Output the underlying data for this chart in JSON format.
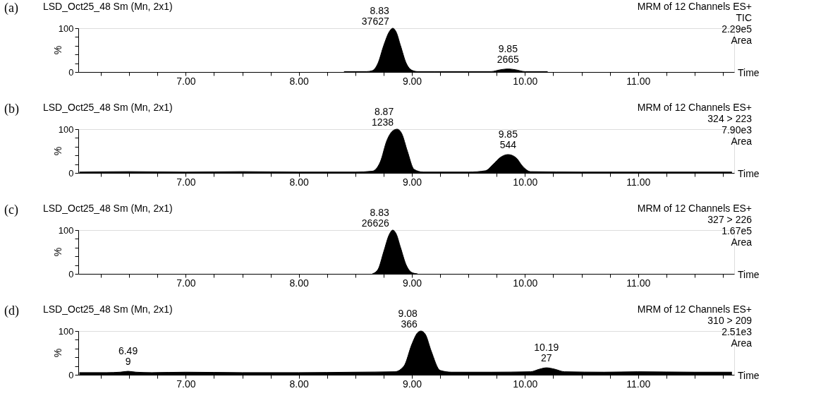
{
  "chart_data": [
    {
      "type": "area",
      "title": "LSD_Oct25_48 Sm (Mn, 2x1)",
      "subtitle": "MRM of 12 Channels ES+",
      "xlabel": "Time",
      "ylabel": "%",
      "color": "#000000",
      "annotations": [
        "(a)",
        "TIC",
        "2.29e5",
        "Area",
        {
          "text": "8.83\n37627",
          "x": 8.83,
          "y": 100
        },
        {
          "text": "9.85\n2665",
          "x": 9.85,
          "y": 7
        }
      ],
      "x": [
        8.4,
        8.6,
        8.65,
        8.7,
        8.75,
        8.8,
        8.83,
        8.86,
        8.9,
        8.95,
        9.0,
        9.05,
        9.2,
        9.5,
        9.7,
        9.78,
        9.85,
        9.92,
        10.0,
        10.2
      ],
      "values": [
        1,
        1,
        3,
        20,
        60,
        92,
        100,
        92,
        60,
        20,
        4,
        1,
        1,
        1,
        1,
        5,
        7,
        5,
        1,
        1
      ],
      "xlim": [
        6.05,
        11.85
      ],
      "ylim": [
        0,
        100
      ],
      "grid": false,
      "xticks": [
        {
          "value": 6.25,
          "label": null
        },
        {
          "value": 6.5,
          "label": null
        },
        {
          "value": 6.75,
          "label": null
        },
        {
          "value": 7,
          "label": "7.00"
        },
        {
          "value": 7.25,
          "label": null
        },
        {
          "value": 7.5,
          "label": null
        },
        {
          "value": 7.75,
          "label": null
        },
        {
          "value": 8,
          "label": "8.00"
        },
        {
          "value": 8.25,
          "label": null
        },
        {
          "value": 8.5,
          "label": null
        },
        {
          "value": 8.75,
          "label": null
        },
        {
          "value": 9,
          "label": "9.00"
        },
        {
          "value": 9.25,
          "label": null
        },
        {
          "value": 9.5,
          "label": null
        },
        {
          "value": 9.75,
          "label": null
        },
        {
          "value": 10,
          "label": "10.00"
        },
        {
          "value": 10.25,
          "label": null
        },
        {
          "value": 10.5,
          "label": null
        },
        {
          "value": 10.75,
          "label": null
        },
        {
          "value": 11,
          "label": "11.00"
        },
        {
          "value": 11.25,
          "label": null
        },
        {
          "value": 11.5,
          "label": null
        },
        {
          "value": 11.75,
          "label": null
        }
      ],
      "yticks": [
        0,
        {
          "value": 20,
          "label": null
        },
        {
          "value": 40,
          "label": null
        },
        {
          "value": 60,
          "label": null
        },
        {
          "value": 80,
          "label": null
        },
        100
      ]
    },
    {
      "type": "area",
      "title": "LSD_Oct25_48 Sm (Mn, 2x1)",
      "subtitle": "MRM of 12 Channels ES+",
      "xlabel": "Time",
      "ylabel": "%",
      "color": "#000000",
      "annotations": [
        "(b)",
        "324 > 223",
        "7.90e3",
        "Area",
        {
          "text": "8.87\n1238",
          "x": 8.87,
          "y": 100
        },
        {
          "text": "9.85\n544",
          "x": 9.85,
          "y": 42
        }
      ],
      "x": [
        6.06,
        6.5,
        7.0,
        7.5,
        8.0,
        8.5,
        8.65,
        8.72,
        8.78,
        8.83,
        8.87,
        8.91,
        8.96,
        9.02,
        9.1,
        9.5,
        9.65,
        9.72,
        9.78,
        9.85,
        9.92,
        9.98,
        10.05,
        10.5,
        11.0,
        11.5,
        11.83
      ],
      "values": [
        2,
        3,
        2,
        3,
        2,
        2,
        4,
        25,
        75,
        96,
        100,
        90,
        50,
        8,
        2,
        2,
        5,
        20,
        35,
        42,
        35,
        15,
        3,
        2,
        2,
        2,
        2
      ],
      "xlim": [
        6.05,
        11.85
      ],
      "ylim": [
        0,
        100
      ],
      "grid": false,
      "xticks": [
        {
          "value": 6.25,
          "label": null
        },
        {
          "value": 6.5,
          "label": null
        },
        {
          "value": 6.75,
          "label": null
        },
        {
          "value": 7,
          "label": "7.00"
        },
        {
          "value": 7.25,
          "label": null
        },
        {
          "value": 7.5,
          "label": null
        },
        {
          "value": 7.75,
          "label": null
        },
        {
          "value": 8,
          "label": "8.00"
        },
        {
          "value": 8.25,
          "label": null
        },
        {
          "value": 8.5,
          "label": null
        },
        {
          "value": 8.75,
          "label": null
        },
        {
          "value": 9,
          "label": "9.00"
        },
        {
          "value": 9.25,
          "label": null
        },
        {
          "value": 9.5,
          "label": null
        },
        {
          "value": 9.75,
          "label": null
        },
        {
          "value": 10,
          "label": "10.00"
        },
        {
          "value": 10.25,
          "label": null
        },
        {
          "value": 10.5,
          "label": null
        },
        {
          "value": 10.75,
          "label": null
        },
        {
          "value": 11,
          "label": "11.00"
        },
        {
          "value": 11.25,
          "label": null
        },
        {
          "value": 11.5,
          "label": null
        },
        {
          "value": 11.75,
          "label": null
        }
      ],
      "yticks": [
        0,
        {
          "value": 20,
          "label": null
        },
        {
          "value": 40,
          "label": null
        },
        {
          "value": 60,
          "label": null
        },
        {
          "value": 80,
          "label": null
        },
        100
      ]
    },
    {
      "type": "area",
      "title": "LSD_Oct25_48 Sm (Mn, 2x1)",
      "subtitle": "MRM of 12 Channels ES+",
      "xlabel": "Time",
      "ylabel": "%",
      "color": "#000000",
      "annotations": [
        "(c)",
        "327 > 226",
        "1.67e5",
        "Area",
        {
          "text": "8.83\n26626",
          "x": 8.83,
          "y": 100
        }
      ],
      "x": [
        8.65,
        8.7,
        8.75,
        8.8,
        8.83,
        8.86,
        8.9,
        8.95,
        9.0,
        9.05
      ],
      "values": [
        0,
        10,
        50,
        90,
        100,
        92,
        60,
        20,
        3,
        0
      ],
      "xlim": [
        6.05,
        11.85
      ],
      "ylim": [
        0,
        100
      ],
      "grid": false,
      "xticks": [
        {
          "value": 6.25,
          "label": null
        },
        {
          "value": 6.5,
          "label": null
        },
        {
          "value": 6.75,
          "label": null
        },
        {
          "value": 7,
          "label": "7.00"
        },
        {
          "value": 7.25,
          "label": null
        },
        {
          "value": 7.5,
          "label": null
        },
        {
          "value": 7.75,
          "label": null
        },
        {
          "value": 8,
          "label": "8.00"
        },
        {
          "value": 8.25,
          "label": null
        },
        {
          "value": 8.5,
          "label": null
        },
        {
          "value": 8.75,
          "label": null
        },
        {
          "value": 9,
          "label": "9.00"
        },
        {
          "value": 9.25,
          "label": null
        },
        {
          "value": 9.5,
          "label": null
        },
        {
          "value": 9.75,
          "label": null
        },
        {
          "value": 10,
          "label": "10.00"
        },
        {
          "value": 10.25,
          "label": null
        },
        {
          "value": 10.5,
          "label": null
        },
        {
          "value": 10.75,
          "label": null
        },
        {
          "value": 11,
          "label": "11.00"
        },
        {
          "value": 11.25,
          "label": null
        },
        {
          "value": 11.5,
          "label": null
        },
        {
          "value": 11.75,
          "label": null
        }
      ],
      "yticks": [
        0,
        {
          "value": 20,
          "label": null
        },
        {
          "value": 40,
          "label": null
        },
        {
          "value": 60,
          "label": null
        },
        {
          "value": 80,
          "label": null
        },
        100
      ]
    },
    {
      "type": "area",
      "title": "LSD_Oct25_48 Sm (Mn, 2x1)",
      "subtitle": "MRM of 12 Channels ES+",
      "xlabel": "Time",
      "ylabel": "%",
      "color": "#000000",
      "annotations": [
        "(d)",
        "310 > 209",
        "2.51e3",
        "Area",
        {
          "text": "6.49\n9",
          "x": 6.49,
          "y": 8
        },
        {
          "text": "9.08\n366",
          "x": 9.08,
          "y": 100
        },
        {
          "text": "10.19\n27",
          "x": 10.19,
          "y": 16
        }
      ],
      "x": [
        6.06,
        6.3,
        6.42,
        6.49,
        6.56,
        6.7,
        7.0,
        7.5,
        8.0,
        8.5,
        8.85,
        8.93,
        9.0,
        9.05,
        9.08,
        9.12,
        9.17,
        9.25,
        9.35,
        9.7,
        10.05,
        10.13,
        10.19,
        10.26,
        10.35,
        10.7,
        11.0,
        11.5,
        11.83
      ],
      "values": [
        5,
        5,
        6,
        8,
        6,
        5,
        6,
        5,
        5,
        6,
        7,
        20,
        70,
        96,
        100,
        92,
        55,
        10,
        6,
        6,
        7,
        13,
        16,
        13,
        7,
        6,
        7,
        6,
        6
      ],
      "xlim": [
        6.05,
        11.85
      ],
      "ylim": [
        0,
        100
      ],
      "grid": false,
      "xticks": [
        {
          "value": 6.25,
          "label": null
        },
        {
          "value": 6.5,
          "label": null
        },
        {
          "value": 6.75,
          "label": null
        },
        {
          "value": 7,
          "label": "7.00"
        },
        {
          "value": 7.25,
          "label": null
        },
        {
          "value": 7.5,
          "label": null
        },
        {
          "value": 7.75,
          "label": null
        },
        {
          "value": 8,
          "label": "8.00"
        },
        {
          "value": 8.25,
          "label": null
        },
        {
          "value": 8.5,
          "label": null
        },
        {
          "value": 8.75,
          "label": null
        },
        {
          "value": 9,
          "label": "9.00"
        },
        {
          "value": 9.25,
          "label": null
        },
        {
          "value": 9.5,
          "label": null
        },
        {
          "value": 9.75,
          "label": null
        },
        {
          "value": 10,
          "label": "10.00"
        },
        {
          "value": 10.25,
          "label": null
        },
        {
          "value": 10.5,
          "label": null
        },
        {
          "value": 10.75,
          "label": null
        },
        {
          "value": 11,
          "label": "11.00"
        },
        {
          "value": 11.25,
          "label": null
        },
        {
          "value": 11.5,
          "label": null
        },
        {
          "value": 11.75,
          "label": null
        }
      ],
      "yticks": [
        0,
        {
          "value": 20,
          "label": null
        },
        {
          "value": 40,
          "label": null
        },
        {
          "value": 60,
          "label": null
        },
        {
          "value": 80,
          "label": null
        },
        100
      ]
    }
  ]
}
